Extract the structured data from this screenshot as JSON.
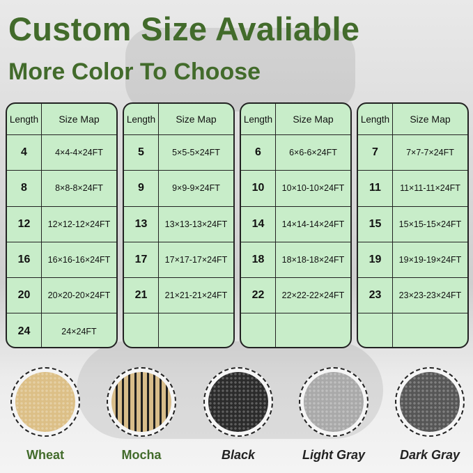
{
  "title": "Custom Size Avaliable",
  "subtitle": "More Color To Choose",
  "table_header": {
    "length": "Length",
    "size_map": "Size Map"
  },
  "tables": [
    [
      [
        "4",
        "4×4-4×24FT"
      ],
      [
        "8",
        "8×8-8×24FT"
      ],
      [
        "12",
        "12×12-12×24FT"
      ],
      [
        "16",
        "16×16-16×24FT"
      ],
      [
        "20",
        "20×20-20×24FT"
      ],
      [
        "24",
        "24×24FT"
      ]
    ],
    [
      [
        "5",
        "5×5-5×24FT"
      ],
      [
        "9",
        "9×9-9×24FT"
      ],
      [
        "13",
        "13×13-13×24FT"
      ],
      [
        "17",
        "17×17-17×24FT"
      ],
      [
        "21",
        "21×21-21×24FT"
      ],
      [
        "",
        ""
      ]
    ],
    [
      [
        "6",
        "6×6-6×24FT"
      ],
      [
        "10",
        "10×10-10×24FT"
      ],
      [
        "14",
        "14×14-14×24FT"
      ],
      [
        "18",
        "18×18-18×24FT"
      ],
      [
        "22",
        "22×22-22×24FT"
      ],
      [
        "",
        ""
      ]
    ],
    [
      [
        "7",
        "7×7-7×24FT"
      ],
      [
        "11",
        "11×11-11×24FT"
      ],
      [
        "15",
        "15×15-15×24FT"
      ],
      [
        "19",
        "19×19-19×24FT"
      ],
      [
        "23",
        "23×23-23×24FT"
      ],
      [
        "",
        ""
      ]
    ]
  ],
  "colors": [
    {
      "name": "Wheat",
      "swatch": "#dcbf86",
      "italic": false
    },
    {
      "name": "Mocha",
      "swatch": "#8a7550",
      "italic": false
    },
    {
      "name": "Black",
      "swatch": "#2b2b2b",
      "italic": true
    },
    {
      "name": "Light Gray",
      "swatch": "#a9a9a9",
      "italic": true
    },
    {
      "name": "Dark Gray",
      "swatch": "#565656",
      "italic": true
    }
  ]
}
